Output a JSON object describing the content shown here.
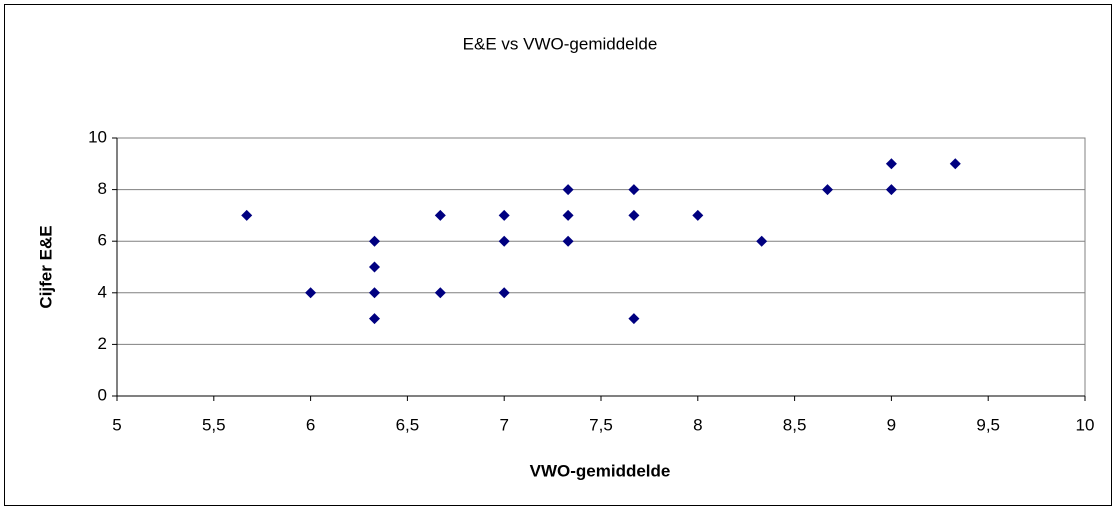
{
  "chart_data": {
    "type": "scatter",
    "title": "E&E vs VWO-gemiddelde",
    "xlabel": "VWO-gemiddelde",
    "ylabel": "Cijfer E&E",
    "x": [
      5.67,
      6,
      6.33,
      6.33,
      6.33,
      6.33,
      6.67,
      6.67,
      7,
      7,
      7,
      7.33,
      7.33,
      7.33,
      7.67,
      7.67,
      7.67,
      8,
      8.33,
      8.67,
      9,
      9,
      9.33
    ],
    "values": [
      7,
      4,
      6,
      5,
      4,
      3,
      7,
      4,
      7,
      6,
      4,
      8,
      7,
      6,
      8,
      7,
      3,
      7,
      6,
      8,
      9,
      8,
      9
    ],
    "color": "#000080",
    "xlim": [
      5,
      10
    ],
    "xticks": [
      5,
      {
        "value": 5.5,
        "label": "5,5"
      },
      6,
      {
        "value": 6.5,
        "label": "6,5"
      },
      7,
      {
        "value": 7.5,
        "label": "7,5"
      },
      8,
      {
        "value": 8.5,
        "label": "8,5"
      },
      9,
      {
        "value": 9.5,
        "label": "9,5"
      },
      10
    ],
    "ylim": [
      0,
      10
    ],
    "yticks": [
      0,
      2,
      4,
      6,
      8,
      10
    ],
    "grid": true
  }
}
